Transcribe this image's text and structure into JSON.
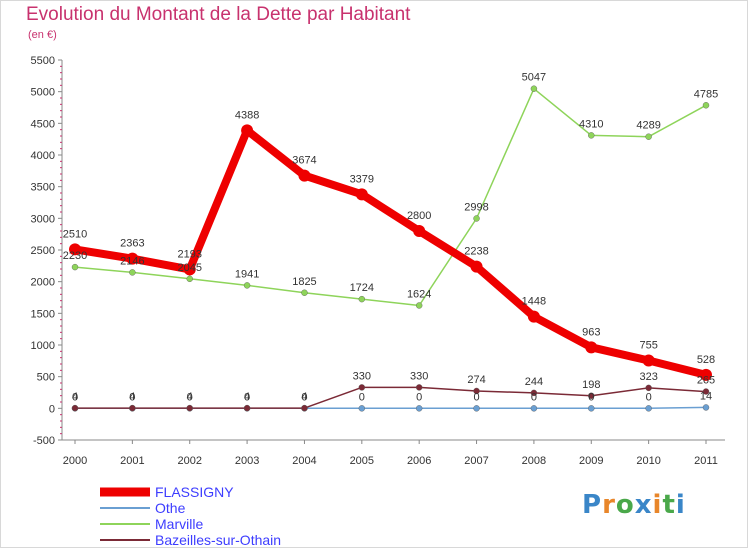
{
  "header": {
    "title": "Evolution du Montant de la Dette par Habitant",
    "subtitle": "(en €)"
  },
  "logo": {
    "text": "Proxiti",
    "letter_colors": [
      "#3a86c8",
      "#e8862a",
      "#4aa84a",
      "#3a86c8",
      "#e8862a",
      "#4aa84a",
      "#3a86c8"
    ]
  },
  "chart_data": {
    "type": "line",
    "title": "Evolution du Montant de la Dette par Habitant",
    "subtitle": "(en €)",
    "xlabel": "",
    "ylabel": "",
    "x": [
      "2000",
      "2001",
      "2002",
      "2003",
      "2004",
      "2005",
      "2006",
      "2007",
      "2008",
      "2009",
      "2010",
      "2011"
    ],
    "ylim": [
      -500,
      5500
    ],
    "yticks": [
      "-500",
      "0",
      "500",
      "1000",
      "1500",
      "2000",
      "2500",
      "3000",
      "3500",
      "4000",
      "4500",
      "5000",
      "5500"
    ],
    "grid": false,
    "legend_position": "bottom-left",
    "series": [
      {
        "name": "FLASSIGNY",
        "color": "#ee0000",
        "values": [
          2510,
          2363,
          2193,
          4388,
          3674,
          3379,
          2800,
          2238,
          1448,
          963,
          755,
          528
        ],
        "labels": [
          "2510",
          "2363",
          "2193",
          "4388",
          "3674",
          "3379",
          "2800",
          "2238",
          "1448",
          "963",
          "755",
          "528"
        ]
      },
      {
        "name": "Othe",
        "color": "#6a9fd2",
        "values": [
          0,
          0,
          0,
          0,
          0,
          0,
          0,
          0,
          0,
          0,
          0,
          14
        ],
        "labels": [
          "0",
          "0",
          "0",
          "0",
          "0",
          "0",
          "0",
          "0",
          "0",
          "0",
          "0",
          "14"
        ]
      },
      {
        "name": "Marville",
        "color": "#8ed45a",
        "values": [
          2230,
          2146,
          2045,
          1941,
          1825,
          1724,
          1624,
          2998,
          5047,
          4310,
          4289,
          4785
        ],
        "labels": [
          "2230",
          "2146",
          "2045",
          "1941",
          "1825",
          "1724",
          "1624",
          "2998",
          "5047",
          "4310",
          "4289",
          "4785"
        ]
      },
      {
        "name": "Bazeilles-sur-Othain",
        "color": "#7b2a36",
        "values": [
          4,
          4,
          4,
          4,
          4,
          330,
          330,
          274,
          244,
          198,
          323,
          265
        ],
        "labels": [
          "4",
          "4",
          "4",
          "4",
          "4",
          "330",
          "330",
          "274",
          "244",
          "198",
          "323",
          "265"
        ]
      }
    ]
  }
}
